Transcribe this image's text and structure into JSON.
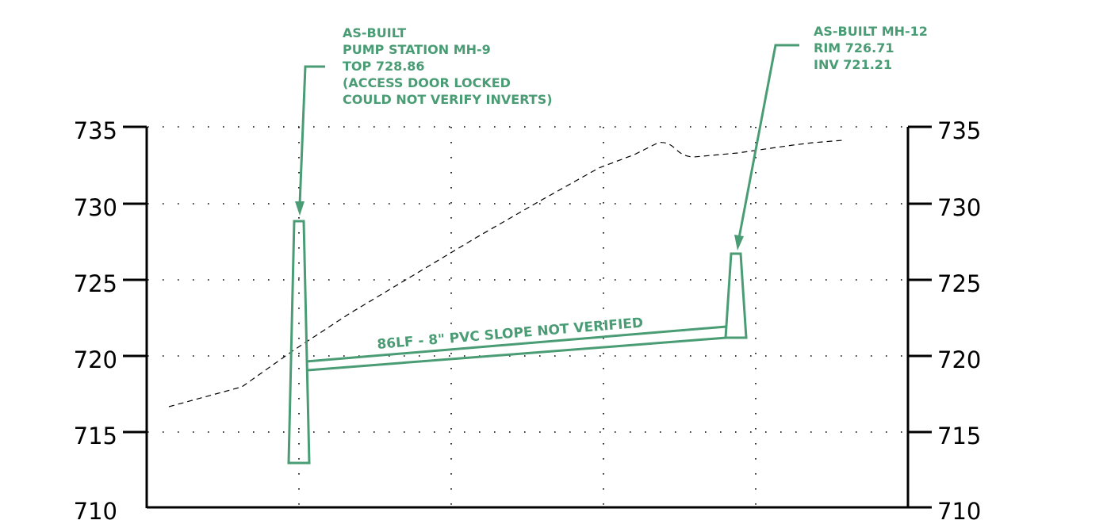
{
  "elevation_axis": {
    "left_ticks": [
      "735",
      "730",
      "725",
      "720",
      "715",
      "710"
    ],
    "right_ticks": [
      "735",
      "730",
      "725",
      "720",
      "715",
      "710"
    ]
  },
  "annotations": {
    "mh9": {
      "lines": [
        "AS-BUILT",
        "PUMP STATION MH-9",
        "TOP 728.86",
        "(ACCESS DOOR LOCKED",
        "COULD NOT VERIFY INVERTS)"
      ]
    },
    "mh12": {
      "lines": [
        "AS-BUILT MH-12",
        "RIM 726.71",
        "INV 721.21"
      ]
    },
    "pipe": {
      "label": "86LF - 8\" PVC SLOPE NOT VERIFIED"
    }
  },
  "colors": {
    "annotation_green": "#4a9c75",
    "frame_black": "#000000"
  }
}
